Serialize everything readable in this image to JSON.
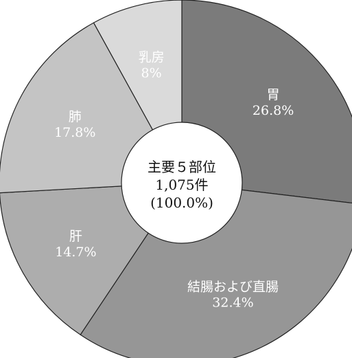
{
  "chart_data": {
    "type": "pie",
    "variant": "donut",
    "start_angle_deg": 0,
    "direction": "clockwise",
    "slices": [
      {
        "name": "胃",
        "value": 26.8,
        "value_label": "26.8%",
        "color": "#7b7b7b",
        "text_color": "#ffffff"
      },
      {
        "name": "結腸および直腸",
        "value": 32.4,
        "value_label": "32.4%",
        "color": "#969696",
        "text_color": "#ffffff"
      },
      {
        "name": "肝",
        "value": 14.7,
        "value_label": "14.7%",
        "color": "#adadad",
        "text_color": "#ffffff"
      },
      {
        "name": "肺",
        "value": 17.8,
        "value_label": "17.8%",
        "color": "#c4c4c4",
        "text_color": "#ffffff"
      },
      {
        "name": "乳房",
        "value": 8,
        "value_label": "8%",
        "color": "#dadada",
        "text_color": "#ffffff"
      }
    ],
    "center_label": {
      "line1": "主要５部位",
      "line2": "1,075件",
      "line3": "(100.0%)"
    }
  }
}
